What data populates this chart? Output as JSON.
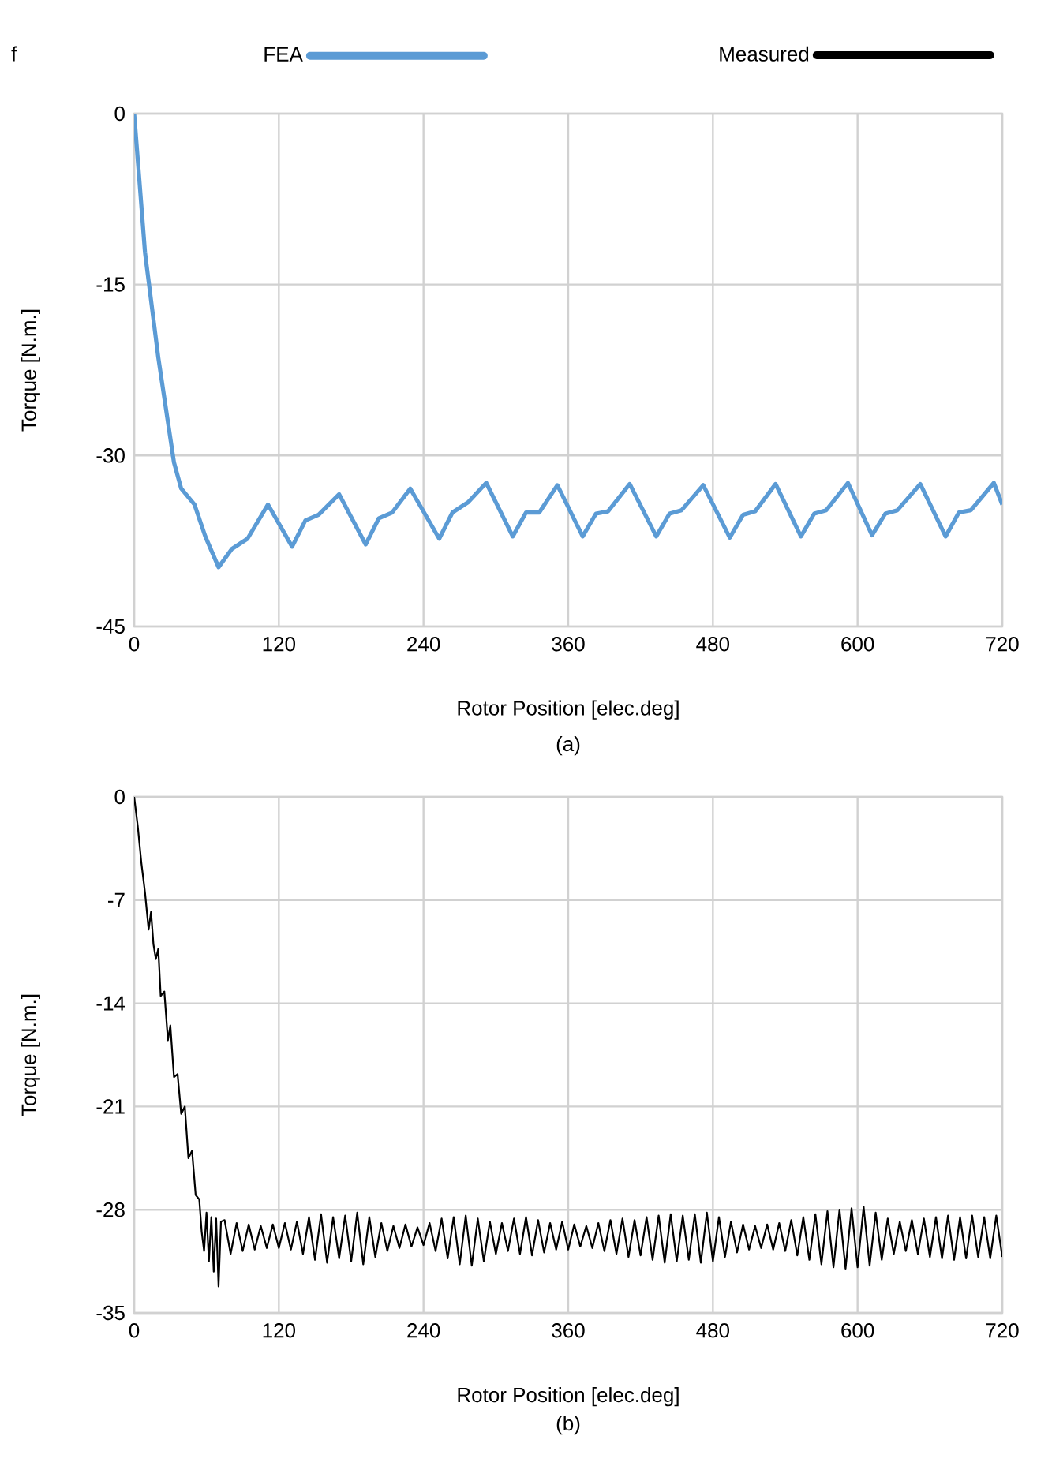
{
  "chart_data": [
    {
      "type": "line",
      "title": "f",
      "xlabel": "Rotor Position [elec.deg]",
      "ylabel": "Torque [N.m.]",
      "xlim": [
        0,
        720
      ],
      "ylim": [
        -45,
        0
      ],
      "xticks": [
        0,
        120,
        240,
        360,
        480,
        600,
        720
      ],
      "yticks": [
        -45,
        -30,
        -15,
        0
      ],
      "grid": true,
      "legend": "top",
      "annotations": [
        "(a)"
      ],
      "series": [
        {
          "name": "FEA",
          "color": "#5b9bd5",
          "x": [
            0,
            9,
            20,
            33,
            39,
            50,
            59,
            70,
            81,
            94,
            111,
            131,
            142,
            153,
            170,
            192,
            203,
            214,
            229,
            253,
            264,
            277,
            292,
            314,
            325,
            336,
            351,
            372,
            383,
            393,
            411,
            433,
            444,
            454,
            472,
            494,
            505,
            515,
            532,
            553,
            564,
            574,
            592,
            612,
            623,
            633,
            652,
            673,
            684,
            694,
            713,
            720
          ],
          "values": [
            0,
            -12.2,
            -21.4,
            -30.6,
            -32.9,
            -34.3,
            -37.1,
            -39.8,
            -38.2,
            -37.3,
            -34.3,
            -38.0,
            -35.7,
            -35.2,
            -33.4,
            -37.8,
            -35.5,
            -35.0,
            -32.9,
            -37.3,
            -35.0,
            -34.1,
            -32.4,
            -37.1,
            -35.0,
            -35.0,
            -32.6,
            -37.1,
            -35.1,
            -34.9,
            -32.5,
            -37.1,
            -35.1,
            -34.8,
            -32.6,
            -37.2,
            -35.2,
            -34.9,
            -32.5,
            -37.1,
            -35.1,
            -34.8,
            -32.4,
            -37.0,
            -35.1,
            -34.8,
            -32.5,
            -37.1,
            -35.0,
            -34.8,
            -32.4,
            -34.3
          ]
        }
      ]
    },
    {
      "type": "line",
      "xlabel": "Rotor Position [elec.deg]",
      "ylabel": "Torque [N.m.]",
      "xlim": [
        0,
        720
      ],
      "ylim": [
        -35,
        0
      ],
      "xticks": [
        0,
        120,
        240,
        360,
        480,
        600,
        720
      ],
      "yticks": [
        -35,
        -28,
        -21,
        -14,
        -7,
        0
      ],
      "grid": true,
      "legend": "top",
      "annotations": [
        "(b)"
      ],
      "series": [
        {
          "name": "Measured",
          "color": "#000000",
          "x": [
            0,
            3,
            6,
            9,
            12,
            14,
            16,
            18,
            20,
            22,
            25,
            28,
            30,
            33,
            36,
            39,
            42,
            45,
            48,
            51,
            54,
            56,
            58,
            60,
            62,
            64,
            66,
            68,
            70,
            72,
            75,
            80,
            85,
            90,
            95,
            100,
            105,
            110,
            115,
            120,
            125,
            130,
            135,
            140,
            145,
            150,
            155,
            160,
            165,
            170,
            175,
            180,
            185,
            190,
            195,
            200,
            205,
            210,
            215,
            220,
            225,
            230,
            235,
            240,
            245,
            250,
            255,
            260,
            265,
            270,
            275,
            280,
            285,
            290,
            295,
            300,
            305,
            310,
            315,
            320,
            325,
            330,
            335,
            340,
            345,
            350,
            355,
            360,
            365,
            370,
            375,
            380,
            385,
            390,
            395,
            400,
            405,
            410,
            415,
            420,
            425,
            430,
            435,
            440,
            445,
            450,
            455,
            460,
            465,
            470,
            475,
            480,
            485,
            490,
            495,
            500,
            505,
            510,
            515,
            520,
            525,
            530,
            535,
            540,
            545,
            550,
            555,
            560,
            565,
            570,
            575,
            580,
            585,
            590,
            595,
            600,
            605,
            610,
            615,
            620,
            625,
            630,
            635,
            640,
            645,
            650,
            655,
            660,
            665,
            670,
            675,
            680,
            685,
            690,
            695,
            700,
            705,
            710,
            715,
            720
          ],
          "values": [
            0,
            -2,
            -4.5,
            -6.5,
            -9,
            -7.8,
            -10,
            -11,
            -10.3,
            -13.5,
            -13.2,
            -16.5,
            -15.5,
            -19,
            -18.8,
            -21.5,
            -21,
            -24.5,
            -24,
            -27,
            -27.3,
            -29.5,
            -30.8,
            -28.2,
            -31.5,
            -28.5,
            -32.2,
            -28.6,
            -33.2,
            -28.8,
            -28.7,
            -31.0,
            -28.9,
            -30.8,
            -29.0,
            -30.7,
            -29.1,
            -30.6,
            -29.0,
            -30.6,
            -28.9,
            -30.7,
            -28.8,
            -31.0,
            -28.5,
            -31.4,
            -28.3,
            -31.6,
            -28.5,
            -31.3,
            -28.4,
            -31.5,
            -28.2,
            -31.7,
            -28.5,
            -31.2,
            -28.9,
            -30.8,
            -29.1,
            -30.6,
            -29.0,
            -30.5,
            -29.2,
            -30.4,
            -28.9,
            -30.8,
            -28.6,
            -31.3,
            -28.5,
            -31.7,
            -28.4,
            -31.8,
            -28.6,
            -31.5,
            -28.8,
            -31.0,
            -28.9,
            -30.8,
            -28.6,
            -31.0,
            -28.5,
            -31.1,
            -28.7,
            -30.9,
            -28.9,
            -30.7,
            -28.8,
            -30.7,
            -29.0,
            -30.5,
            -29.1,
            -30.6,
            -28.9,
            -30.8,
            -28.7,
            -31.0,
            -28.6,
            -31.2,
            -28.7,
            -31.1,
            -28.5,
            -31.4,
            -28.4,
            -31.6,
            -28.3,
            -31.5,
            -28.4,
            -31.4,
            -28.3,
            -31.6,
            -28.2,
            -31.5,
            -28.5,
            -31.2,
            -28.8,
            -30.9,
            -29.0,
            -30.7,
            -29.1,
            -30.6,
            -29.0,
            -30.7,
            -28.9,
            -30.8,
            -28.7,
            -31.1,
            -28.5,
            -31.4,
            -28.3,
            -31.7,
            -28.1,
            -31.9,
            -28.0,
            -32.0,
            -27.9,
            -31.9,
            -27.8,
            -31.8,
            -28.2,
            -31.4,
            -28.6,
            -31.0,
            -28.8,
            -30.8,
            -28.7,
            -31.0,
            -28.6,
            -31.2,
            -28.5,
            -31.3,
            -28.4,
            -31.4,
            -28.5,
            -31.3,
            -28.4,
            -31.2,
            -28.5,
            -31.3,
            -28.4,
            -31.2
          ]
        }
      ]
    }
  ]
}
